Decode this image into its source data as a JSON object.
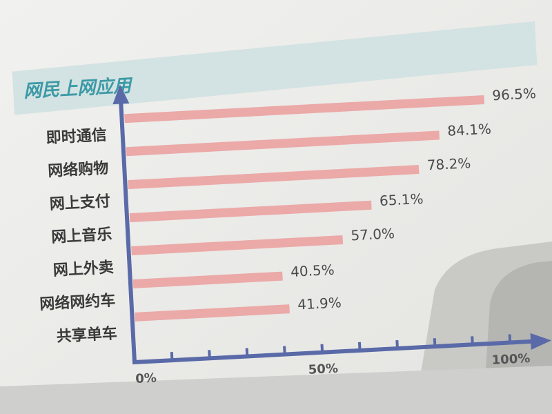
{
  "chart_data": {
    "type": "bar",
    "orientation": "horizontal",
    "title": "网民上网应用",
    "categories": [
      "即时通信",
      "网络购物",
      "网上支付",
      "网上音乐",
      "网上外卖",
      "网络网约车",
      "共享单车"
    ],
    "values": [
      96.5,
      84.1,
      78.2,
      65.1,
      57.0,
      40.5,
      41.9
    ],
    "value_labels": [
      "96.5%",
      "84.1%",
      "78.2%",
      "65.1%",
      "57.0%",
      "40.5%",
      "41.9%"
    ],
    "xlim": [
      0,
      100
    ],
    "x_ticks": [
      0,
      10,
      20,
      30,
      40,
      50,
      60,
      70,
      80,
      90,
      100
    ],
    "x_tick_labels": {
      "0": "0%",
      "50": "50%",
      "100": "100%"
    },
    "grid": false,
    "colors": {
      "bar": "#eba9a8",
      "axis": "#5a6aa8",
      "title": "#3b9aa6",
      "title_band": "#d3e2e2"
    }
  }
}
